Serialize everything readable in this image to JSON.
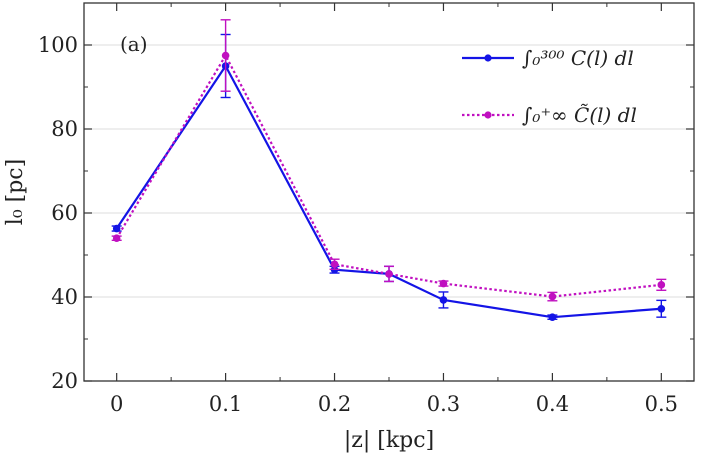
{
  "chart_data": {
    "type": "line",
    "panel_label": "(a)",
    "xlabel": "|z| [kpc]",
    "ylabel": "l₀ [pc]",
    "xlim": [
      -0.03,
      0.53
    ],
    "ylim": [
      20,
      110
    ],
    "xticks": [
      0,
      0.1,
      0.2,
      0.3,
      0.4,
      0.5
    ],
    "xtick_labels": [
      "0",
      "0.1",
      "0.2",
      "0.3",
      "0.4",
      "0.5"
    ],
    "yticks": [
      20,
      40,
      60,
      80,
      100
    ],
    "ytick_labels": [
      "20",
      "40",
      "60",
      "80",
      "100"
    ],
    "grid": "horizontal",
    "legend_position": "top-right",
    "series": [
      {
        "name": "∫₀³⁰⁰ C(l) dl",
        "color": "#1414e6",
        "linestyle": "solid",
        "x": [
          0,
          0.1,
          0.2,
          0.25,
          0.3,
          0.4,
          0.5
        ],
        "y": [
          56.3,
          95.0,
          46.5,
          45.5,
          39.3,
          35.2,
          37.2
        ],
        "yerr": [
          0.6,
          7.5,
          0.8,
          1.8,
          1.9,
          0.5,
          2.0
        ]
      },
      {
        "name": "∫₀⁺∞ C̃(l) dl",
        "color": "#c010c0",
        "linestyle": "dotted",
        "x": [
          0,
          0.1,
          0.2,
          0.25,
          0.3,
          0.4,
          0.5
        ],
        "y": [
          54.0,
          97.5,
          47.8,
          45.5,
          43.2,
          40.1,
          42.9
        ],
        "yerr": [
          0.5,
          8.5,
          1.2,
          1.8,
          0.6,
          1.0,
          1.3
        ]
      }
    ]
  }
}
